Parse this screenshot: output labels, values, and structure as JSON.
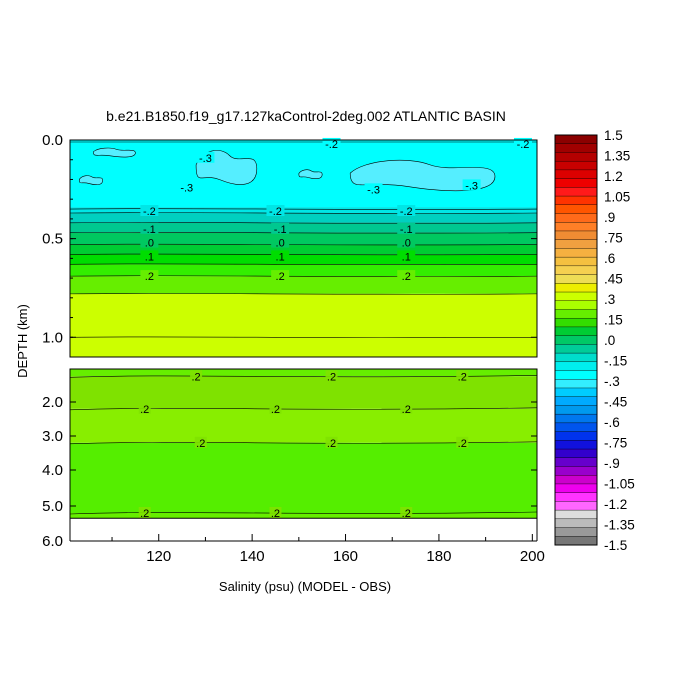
{
  "chart_data": {
    "type": "heatmap",
    "title": "b.e21.B1850.f19_g17.127kaControl-2deg.002 ATLANTIC BASIN",
    "xlabel": "Salinity (psu) (MODEL - OBS)",
    "ylabel": "DEPTH (km)",
    "xlim": [
      101,
      201
    ],
    "x_ticks": [
      "120",
      "140",
      "160",
      "180",
      "200"
    ],
    "upper_panel": {
      "ylim": [
        0.0,
        1.1
      ],
      "y_ticks": [
        "0.0",
        "0.5",
        "1.0"
      ],
      "bands": [
        {
          "from": 0.0,
          "to": 0.34,
          "color": "#00ffff"
        },
        {
          "from": 0.34,
          "to": 0.37,
          "color": "#00e6e6"
        },
        {
          "from": 0.37,
          "to": 0.42,
          "color": "#00d0c0"
        },
        {
          "from": 0.42,
          "to": 0.47,
          "color": "#00c890"
        },
        {
          "from": 0.47,
          "to": 0.53,
          "color": "#00c860"
        },
        {
          "from": 0.53,
          "to": 0.58,
          "color": "#00cc33"
        },
        {
          "from": 0.58,
          "to": 0.63,
          "color": "#00dd00"
        },
        {
          "from": 0.63,
          "to": 0.69,
          "color": "#33ee00"
        },
        {
          "from": 0.69,
          "to": 0.78,
          "color": "#66ee00"
        },
        {
          "from": 0.78,
          "to": 1.1,
          "color": "#ccff00"
        }
      ],
      "contour_depths": [
        0.35,
        0.37,
        0.42,
        0.47,
        0.53,
        0.58,
        0.63,
        0.69,
        0.78,
        1.0
      ],
      "contour_labels": [
        {
          "text": "-.2",
          "x": 118,
          "depth": 0.36
        },
        {
          "text": "-.2",
          "x": 145,
          "depth": 0.36
        },
        {
          "text": "-.2",
          "x": 173,
          "depth": 0.36
        },
        {
          "text": "-.1",
          "x": 118,
          "depth": 0.45
        },
        {
          "text": "-.1",
          "x": 146,
          "depth": 0.45
        },
        {
          "text": "-.1",
          "x": 173,
          "depth": 0.45
        },
        {
          "text": ".0",
          "x": 118,
          "depth": 0.52
        },
        {
          "text": ".0",
          "x": 146,
          "depth": 0.52
        },
        {
          "text": ".0",
          "x": 173,
          "depth": 0.52
        },
        {
          "text": ".1",
          "x": 118,
          "depth": 0.59
        },
        {
          "text": ".1",
          "x": 146,
          "depth": 0.59
        },
        {
          "text": ".1",
          "x": 173,
          "depth": 0.59
        },
        {
          "text": ".2",
          "x": 118,
          "depth": 0.69
        },
        {
          "text": ".2",
          "x": 146,
          "depth": 0.69
        },
        {
          "text": ".2",
          "x": 173,
          "depth": 0.69
        },
        {
          "text": "-.3",
          "x": 130,
          "depth": 0.09
        },
        {
          "text": "-.3",
          "x": 126,
          "depth": 0.24
        },
        {
          "text": "-.3",
          "x": 166,
          "depth": 0.25
        },
        {
          "text": "-.3",
          "x": 187,
          "depth": 0.23
        },
        {
          "text": "-.2",
          "x": 157,
          "depth": 0.02
        },
        {
          "text": "-.2",
          "x": 198,
          "depth": 0.02
        }
      ],
      "patches": [
        {
          "x1": 128,
          "x2": 141,
          "d1": 0.05,
          "d2": 0.24
        },
        {
          "x1": 150,
          "x2": 155,
          "d1": 0.15,
          "d2": 0.2
        },
        {
          "x1": 161,
          "x2": 192,
          "d1": 0.1,
          "d2": 0.27
        },
        {
          "x1": 103,
          "x2": 108,
          "d1": 0.18,
          "d2": 0.23
        },
        {
          "x1": 106,
          "x2": 115,
          "d1": 0.04,
          "d2": 0.09
        }
      ]
    },
    "lower_panel": {
      "ylim": [
        1.1,
        6.0
      ],
      "y_ticks": [
        "2.0",
        "3.0",
        "4.0",
        "5.0",
        "6.0"
      ],
      "data_bottom": 5.35,
      "bands": [
        {
          "from": 1.1,
          "to": 1.3,
          "color": "#66ee00"
        },
        {
          "from": 1.3,
          "to": 2.2,
          "color": "#7fe200"
        },
        {
          "from": 2.2,
          "to": 3.2,
          "color": "#88ee00"
        },
        {
          "from": 3.2,
          "to": 5.2,
          "color": "#55ee00"
        },
        {
          "from": 5.2,
          "to": 5.35,
          "color": "#66ee00"
        }
      ],
      "contour_depths": [
        1.3,
        2.2,
        3.2,
        5.2
      ],
      "contour_labels": [
        {
          "text": ".2",
          "x": 128,
          "depth": 1.3
        },
        {
          "text": ".2",
          "x": 157,
          "depth": 1.3
        },
        {
          "text": ".2",
          "x": 185,
          "depth": 1.3
        },
        {
          "text": ".2",
          "x": 117,
          "depth": 2.2
        },
        {
          "text": ".2",
          "x": 145,
          "depth": 2.2
        },
        {
          "text": ".2",
          "x": 173,
          "depth": 2.2
        },
        {
          "text": ".2",
          "x": 129,
          "depth": 3.2
        },
        {
          "text": ".2",
          "x": 157,
          "depth": 3.2
        },
        {
          "text": ".2",
          "x": 185,
          "depth": 3.2
        },
        {
          "text": ".2",
          "x": 117,
          "depth": 5.2
        },
        {
          "text": ".2",
          "x": 145,
          "depth": 5.2
        },
        {
          "text": ".2",
          "x": 173,
          "depth": 5.2
        }
      ]
    },
    "colorbar": {
      "labels": [
        "1.5",
        "1.35",
        "1.2",
        "1.05",
        ".9",
        ".75",
        ".6",
        ".45",
        ".3",
        ".15",
        ".0",
        "-.15",
        "-.3",
        "-.45",
        "-.6",
        "-.75",
        "-.9",
        "-1.05",
        "-1.2",
        "-1.35",
        "-1.5"
      ],
      "colors": [
        "#8b0000",
        "#a00000",
        "#b40000",
        "#c80000",
        "#dc0000",
        "#ee0000",
        "#ff1a1a",
        "#ff3300",
        "#ff5500",
        "#ff6a1a",
        "#ff7f27",
        "#f08c33",
        "#f0a040",
        "#f5b040",
        "#f5c040",
        "#f5d050",
        "#eedd55",
        "#eeee00",
        "#ccff00",
        "#aaff00",
        "#66ee00",
        "#33dd00",
        "#00cc33",
        "#00c866",
        "#00cc99",
        "#00ddcc",
        "#00eeee",
        "#00ffff",
        "#33eeff",
        "#00ccff",
        "#00aaff",
        "#0099ee",
        "#0077ee",
        "#0055ee",
        "#0033ee",
        "#1111dd",
        "#3300cc",
        "#6600cc",
        "#9900cc",
        "#cc00cc",
        "#ee00ee",
        "#ff33ff",
        "#ff66ff",
        "#dddddd",
        "#bbbbbb",
        "#999999",
        "#777777"
      ]
    }
  }
}
